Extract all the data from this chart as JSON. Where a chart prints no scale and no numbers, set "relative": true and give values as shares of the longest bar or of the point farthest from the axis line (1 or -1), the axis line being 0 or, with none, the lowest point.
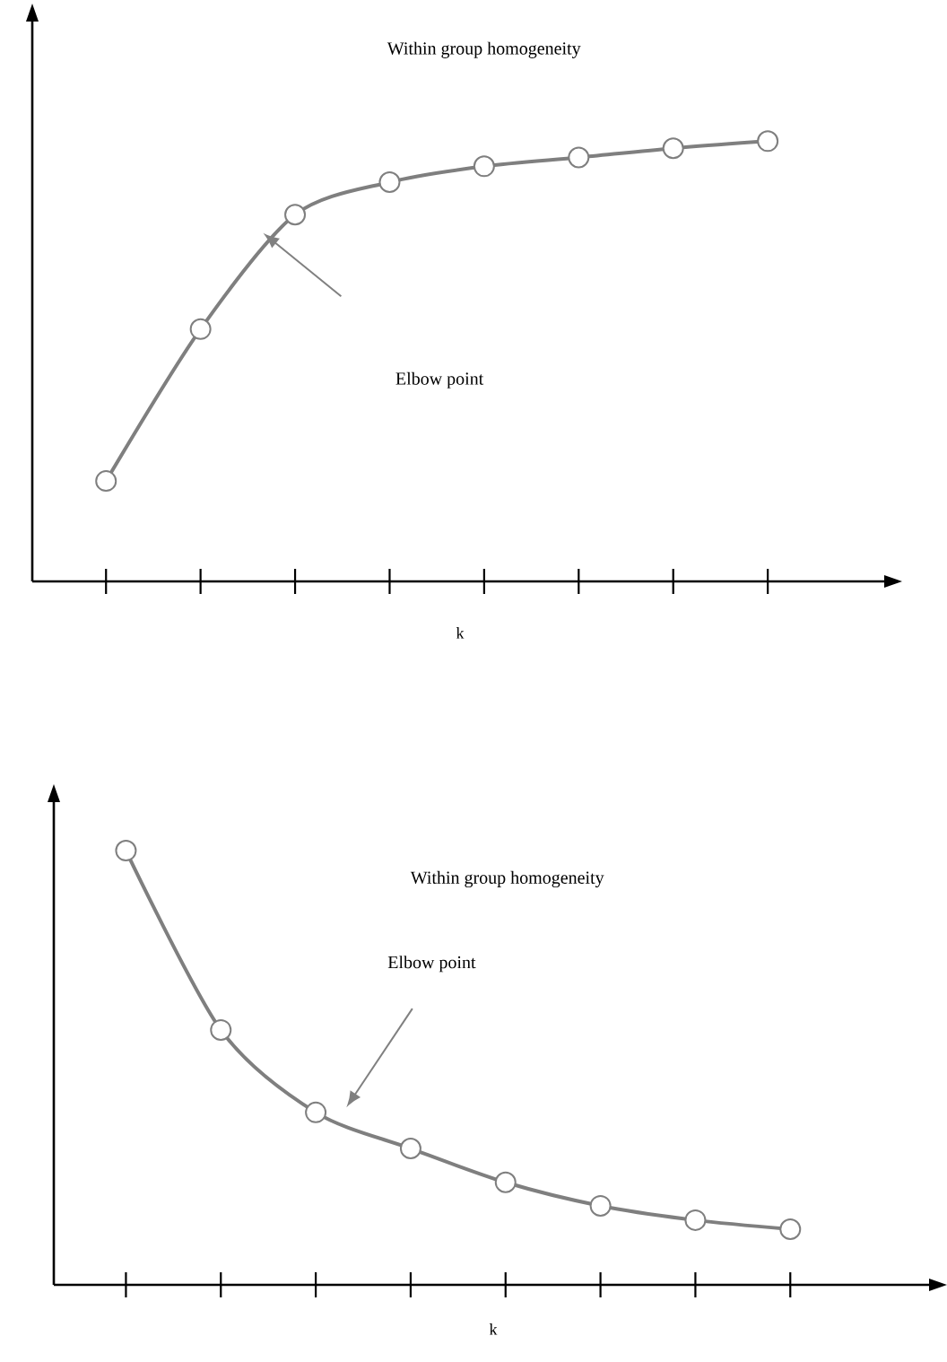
{
  "chart_data": [
    {
      "type": "line",
      "title": "Within group homogeneity",
      "xlabel": "k",
      "categories": [
        null,
        null,
        null,
        null,
        null,
        null,
        null,
        null
      ],
      "values": [
        0.228,
        0.573,
        0.833,
        0.907,
        0.943,
        0.963,
        0.984,
        1.0
      ],
      "color": "#7f7f7f",
      "relative": true,
      "marker": "circle",
      "annotations": [
        "Elbow point"
      ]
    },
    {
      "type": "line",
      "title": "Within group homogeneity",
      "xlabel": "k",
      "categories": [
        null,
        null,
        null,
        null,
        null,
        null,
        null,
        null
      ],
      "values": [
        1.0,
        0.587,
        0.397,
        0.314,
        0.236,
        0.182,
        0.149,
        0.128
      ],
      "color": "#7f7f7f",
      "relative": true,
      "marker": "circle",
      "annotations": [
        "Elbow point"
      ]
    }
  ]
}
